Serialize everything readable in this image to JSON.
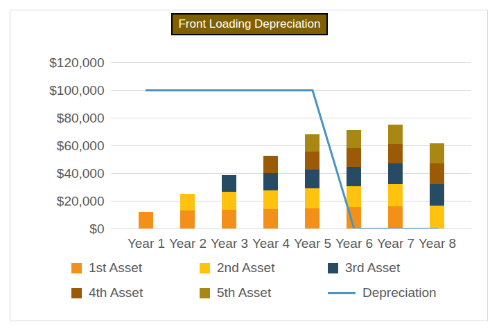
{
  "chart_data": {
    "type": "bar",
    "title": "Front Loading Depreciation",
    "stacked": true,
    "grid": true,
    "legend": "bottom",
    "categories": [
      "Year 1",
      "Year 2",
      "Year 3",
      "Year 4",
      "Year 5",
      "Year 6",
      "Year 7",
      "Year 8"
    ],
    "series": [
      {
        "name": "1st Asset",
        "color": "#f39019",
        "values": [
          12000,
          13000,
          13500,
          14000,
          14500,
          15500,
          16000,
          0
        ]
      },
      {
        "name": "2nd Asset",
        "color": "#ffc20e",
        "values": [
          0,
          12000,
          13000,
          13500,
          14500,
          15000,
          16000,
          16500
        ]
      },
      {
        "name": "3rd Asset",
        "color": "#264b62",
        "values": [
          0,
          0,
          12000,
          12500,
          13500,
          14000,
          15000,
          15500
        ]
      },
      {
        "name": "4th Asset",
        "color": "#9b5a06",
        "values": [
          0,
          0,
          0,
          12500,
          13000,
          13500,
          14000,
          15000
        ]
      },
      {
        "name": "5th Asset",
        "color": "#a88712",
        "values": [
          0,
          0,
          0,
          0,
          12500,
          13000,
          14000,
          14500
        ]
      },
      {
        "name": "Depreciation",
        "type": "line",
        "color": "#4994c4",
        "values": [
          100000,
          100000,
          100000,
          100000,
          100000,
          0,
          0,
          0
        ]
      }
    ],
    "ylim": [
      0,
      120000
    ],
    "yticks": [
      {
        "value": 0,
        "label": "$0"
      },
      {
        "value": 20000,
        "label": "$20,000"
      },
      {
        "value": 40000,
        "label": "$40,000"
      },
      {
        "value": 60000,
        "label": "$60,000"
      },
      {
        "value": 80000,
        "label": "$80,000"
      },
      {
        "value": 100000,
        "label": "$100,000"
      },
      {
        "value": 120000,
        "label": "$120,000"
      }
    ]
  }
}
